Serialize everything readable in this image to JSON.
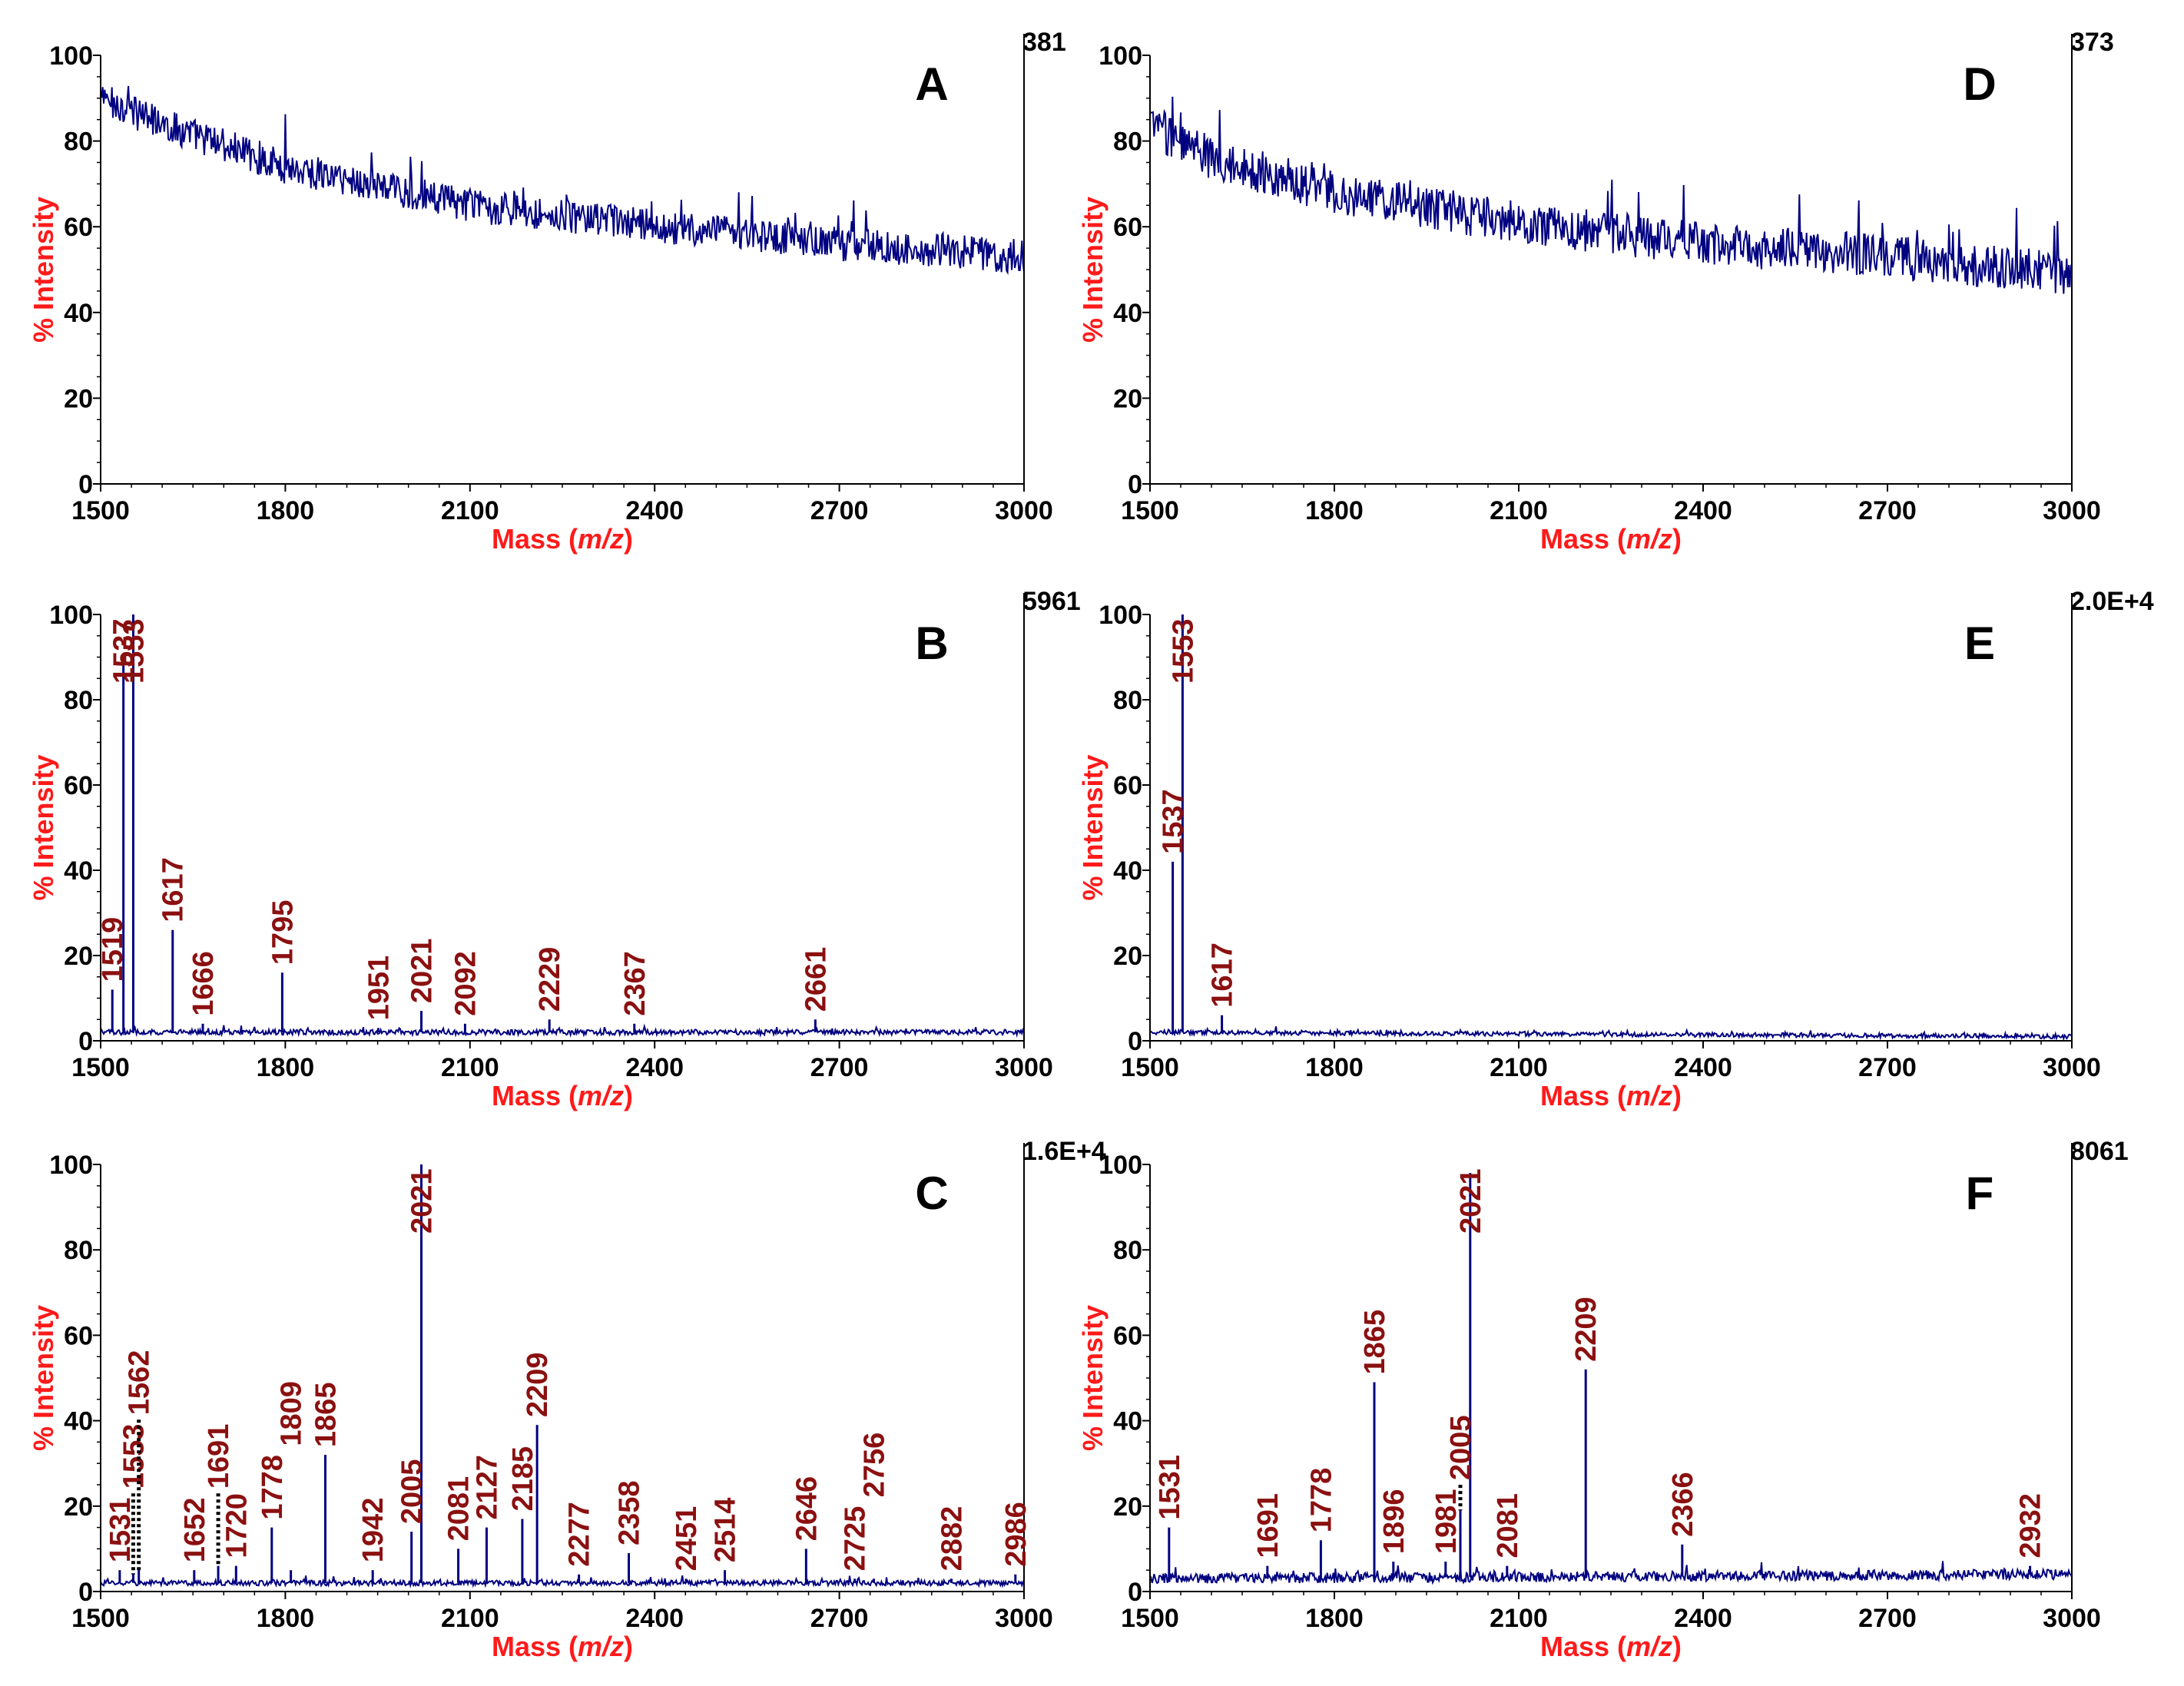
{
  "colors": {
    "spectrum": "#000080",
    "peak_label": "#8b1010",
    "axis_title": "#ff1a1a",
    "axis": "#000000"
  },
  "chart_data": [
    {
      "id": "A",
      "type": "line",
      "title": "A",
      "xlabel": "Mass (m/z)",
      "xlabel_plain": "Mass (",
      "xlabel_italic": "m/z",
      "xlabel_close": ")",
      "ylabel": "% Intensity",
      "max_intensity_label": "381",
      "xlim": [
        1500,
        3000
      ],
      "ylim": [
        0,
        100
      ],
      "xticks": [
        "1500",
        "1800",
        "2100",
        "2400",
        "2700",
        "3000"
      ],
      "yticks": [
        "0",
        "20",
        "40",
        "60",
        "80",
        "100"
      ],
      "baseline": {
        "x": [
          1500,
          1600,
          1800,
          2100,
          2400,
          2700,
          3000
        ],
        "y": [
          90,
          84,
          74,
          65,
          60,
          56,
          53
        ]
      },
      "noise_amplitude": 4,
      "peaks": [],
      "dotted_connectors": []
    },
    {
      "id": "B",
      "type": "line",
      "title": "B",
      "xlabel": "Mass (m/z)",
      "xlabel_plain": "Mass (",
      "xlabel_italic": "m/z",
      "xlabel_close": ")",
      "ylabel": "% Intensity",
      "max_intensity_label": "5961",
      "xlim": [
        1500,
        3000
      ],
      "ylim": [
        0,
        100
      ],
      "xticks": [
        "1500",
        "1800",
        "2100",
        "2400",
        "2700",
        "3000"
      ],
      "yticks": [
        "0",
        "20",
        "40",
        "60",
        "80",
        "100"
      ],
      "baseline": {
        "x": [
          1500,
          3000
        ],
        "y": [
          2,
          2
        ]
      },
      "noise_amplitude": 0.6,
      "peaks": [
        {
          "label": "1519",
          "x": 1519,
          "y": 12
        },
        {
          "label": "1537",
          "x": 1537,
          "y": 90
        },
        {
          "label": "1553",
          "x": 1553,
          "y": 100
        },
        {
          "label": "1617",
          "x": 1617,
          "y": 26
        },
        {
          "label": "1666",
          "x": 1666,
          "y": 4
        },
        {
          "label": "1795",
          "x": 1795,
          "y": 16
        },
        {
          "label": "1951",
          "x": 1951,
          "y": 3
        },
        {
          "label": "2021",
          "x": 2021,
          "y": 7
        },
        {
          "label": "2092",
          "x": 2092,
          "y": 4
        },
        {
          "label": "2229",
          "x": 2229,
          "y": 5
        },
        {
          "label": "2367",
          "x": 2367,
          "y": 4
        },
        {
          "label": "2661",
          "x": 2661,
          "y": 5
        }
      ],
      "dotted_connectors": []
    },
    {
      "id": "C",
      "type": "line",
      "title": "C",
      "xlabel": "Mass (m/z)",
      "xlabel_plain": "Mass (",
      "xlabel_italic": "m/z",
      "xlabel_close": ")",
      "ylabel": "% Intensity",
      "max_intensity_label": "1.6E+4",
      "xlim": [
        1500,
        3000
      ],
      "ylim": [
        0,
        100
      ],
      "xticks": [
        "1500",
        "1800",
        "2100",
        "2400",
        "2700",
        "3000"
      ],
      "yticks": [
        "0",
        "20",
        "40",
        "60",
        "80",
        "100"
      ],
      "baseline": {
        "x": [
          1500,
          3000
        ],
        "y": [
          2,
          2
        ]
      },
      "noise_amplitude": 0.6,
      "peaks": [
        {
          "label": "1531",
          "x": 1531,
          "y": 5
        },
        {
          "label": "1553",
          "x": 1553,
          "y": 4
        },
        {
          "label": "1562",
          "x": 1562,
          "y": 5
        },
        {
          "label": "1652",
          "x": 1652,
          "y": 5
        },
        {
          "label": "1691",
          "x": 1691,
          "y": 6
        },
        {
          "label": "1720",
          "x": 1720,
          "y": 6
        },
        {
          "label": "1778",
          "x": 1778,
          "y": 15
        },
        {
          "label": "1809",
          "x": 1809,
          "y": 5
        },
        {
          "label": "1865",
          "x": 1865,
          "y": 32
        },
        {
          "label": "1942",
          "x": 1942,
          "y": 5
        },
        {
          "label": "2005",
          "x": 2005,
          "y": 14
        },
        {
          "label": "2021",
          "x": 2021,
          "y": 100
        },
        {
          "label": "2081",
          "x": 2081,
          "y": 10
        },
        {
          "label": "2127",
          "x": 2127,
          "y": 15
        },
        {
          "label": "2185",
          "x": 2185,
          "y": 17
        },
        {
          "label": "2209",
          "x": 2209,
          "y": 39
        },
        {
          "label": "2277",
          "x": 2277,
          "y": 4
        },
        {
          "label": "2358",
          "x": 2358,
          "y": 9
        },
        {
          "label": "2451",
          "x": 2451,
          "y": 3
        },
        {
          "label": "2514",
          "x": 2514,
          "y": 5
        },
        {
          "label": "2646",
          "x": 2646,
          "y": 10
        },
        {
          "label": "2725",
          "x": 2725,
          "y": 3
        },
        {
          "label": "2756",
          "x": 2756,
          "y": 3
        },
        {
          "label": "2882",
          "x": 2882,
          "y": 3
        },
        {
          "label": "2986",
          "x": 2986,
          "y": 4
        }
      ],
      "dotted_connectors": [
        {
          "from": "1553",
          "to_x": 1553
        },
        {
          "from": "1562",
          "to_x": 1562
        },
        {
          "from": "1691",
          "to_x": 1691
        }
      ]
    },
    {
      "id": "D",
      "type": "line",
      "title": "D",
      "xlabel": "Mass (m/z)",
      "xlabel_plain": "Mass (",
      "xlabel_italic": "m/z",
      "xlabel_close": ")",
      "ylabel": "% Intensity",
      "max_intensity_label": "373",
      "xlim": [
        1500,
        3000
      ],
      "ylim": [
        0,
        100
      ],
      "xticks": [
        "1500",
        "1800",
        "2100",
        "2400",
        "2700",
        "3000"
      ],
      "yticks": [
        "0",
        "20",
        "40",
        "60",
        "80",
        "100"
      ],
      "baseline": {
        "x": [
          1500,
          1600,
          1800,
          2100,
          2400,
          2700,
          3000
        ],
        "y": [
          84,
          76,
          68,
          61,
          56,
          53,
          49
        ]
      },
      "noise_amplitude": 5,
      "peaks": [],
      "dotted_connectors": []
    },
    {
      "id": "E",
      "type": "line",
      "title": "E",
      "xlabel": "Mass (m/z)",
      "xlabel_plain": "Mass (",
      "xlabel_italic": "m/z",
      "xlabel_close": ")",
      "ylabel": "% Intensity",
      "max_intensity_label": "2.0E+4",
      "xlim": [
        1500,
        3000
      ],
      "ylim": [
        0,
        100
      ],
      "xticks": [
        "1500",
        "1800",
        "2100",
        "2400",
        "2700",
        "3000"
      ],
      "yticks": [
        "0",
        "20",
        "40",
        "60",
        "80",
        "100"
      ],
      "baseline": {
        "x": [
          1500,
          3000
        ],
        "y": [
          2,
          1
        ]
      },
      "noise_amplitude": 0.5,
      "peaks": [
        {
          "label": "1537",
          "x": 1537,
          "y": 42
        },
        {
          "label": "1553",
          "x": 1553,
          "y": 100
        },
        {
          "label": "1617",
          "x": 1617,
          "y": 6
        }
      ],
      "dotted_connectors": []
    },
    {
      "id": "F",
      "type": "line",
      "title": "F",
      "xlabel": "Mass (m/z)",
      "xlabel_plain": "Mass (",
      "xlabel_italic": "m/z",
      "xlabel_close": ")",
      "ylabel": "% Intensity",
      "max_intensity_label": "8061",
      "xlim": [
        1500,
        3000
      ],
      "ylim": [
        0,
        100
      ],
      "xticks": [
        "1500",
        "1800",
        "2100",
        "2400",
        "2700",
        "3000"
      ],
      "yticks": [
        "0",
        "20",
        "40",
        "60",
        "80",
        "100"
      ],
      "baseline": {
        "x": [
          1500,
          3000
        ],
        "y": [
          3,
          4
        ]
      },
      "noise_amplitude": 1.2,
      "peaks": [
        {
          "label": "1531",
          "x": 1531,
          "y": 15
        },
        {
          "label": "1691",
          "x": 1691,
          "y": 6
        },
        {
          "label": "1778",
          "x": 1778,
          "y": 12
        },
        {
          "label": "1865",
          "x": 1865,
          "y": 49
        },
        {
          "label": "1896",
          "x": 1896,
          "y": 7
        },
        {
          "label": "1981",
          "x": 1981,
          "y": 7
        },
        {
          "label": "2005",
          "x": 2005,
          "y": 19
        },
        {
          "label": "2021",
          "x": 2021,
          "y": 98
        },
        {
          "label": "2081",
          "x": 2081,
          "y": 6
        },
        {
          "label": "2209",
          "x": 2209,
          "y": 52
        },
        {
          "label": "2366",
          "x": 2366,
          "y": 11
        },
        {
          "label": "2932",
          "x": 2932,
          "y": 6
        }
      ],
      "dotted_connectors": [
        {
          "from": "2005",
          "to_x": 2005
        }
      ]
    }
  ]
}
